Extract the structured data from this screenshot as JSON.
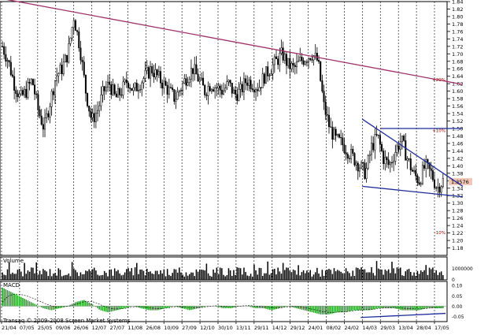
{
  "chart_data": [
    {
      "type": "candlestick",
      "panel": "price",
      "ylim": [
        1.16,
        1.84
      ],
      "y_ticks": [
        1.84,
        1.82,
        1.8,
        1.78,
        1.76,
        1.74,
        1.72,
        1.7,
        1.68,
        1.66,
        1.64,
        1.62,
        1.6,
        1.58,
        1.56,
        1.54,
        1.52,
        1.5,
        1.48,
        1.46,
        1.44,
        1.42,
        1.4,
        1.38,
        1.36,
        1.34,
        1.32,
        1.3,
        1.28,
        1.26,
        1.24,
        1.22,
        1.2,
        1.18
      ],
      "y_tick_labels": [
        "1.84",
        "1.82",
        "1.80",
        "1.78",
        "1.76",
        "1.74",
        "1.72",
        "1.70",
        "1.68",
        "1.66",
        "1.64",
        "1.62",
        "1.60",
        "1.58",
        "1.56",
        "1.54",
        "1.52",
        "1.50",
        "1.48",
        "1.46",
        "1.44",
        "1.42",
        "1.40",
        "1.38",
        "1.36",
        "1.34",
        "1.32",
        "1.30",
        "1.28",
        "1.26",
        "1.24",
        "1.22",
        "1.20",
        "1.18"
      ],
      "last_price": "1.3576",
      "approx_close_series": [
        1.72,
        1.68,
        1.62,
        1.58,
        1.6,
        1.63,
        1.55,
        1.5,
        1.57,
        1.64,
        1.66,
        1.7,
        1.8,
        1.72,
        1.6,
        1.52,
        1.55,
        1.6,
        1.62,
        1.58,
        1.6,
        1.63,
        1.6,
        1.62,
        1.64,
        1.66,
        1.64,
        1.62,
        1.6,
        1.58,
        1.61,
        1.64,
        1.66,
        1.63,
        1.6,
        1.62,
        1.61,
        1.6,
        1.62,
        1.59,
        1.6,
        1.63,
        1.62,
        1.61,
        1.64,
        1.66,
        1.68,
        1.7,
        1.67,
        1.66,
        1.68,
        1.69,
        1.7,
        1.68,
        1.56,
        1.5,
        1.47,
        1.46,
        1.44,
        1.42,
        1.4,
        1.38,
        1.45,
        1.48,
        1.42,
        1.4,
        1.44,
        1.47,
        1.42,
        1.38,
        1.36,
        1.4,
        1.38,
        1.34,
        1.36
      ],
      "annotations": [
        {
          "text": "+20%",
          "y": 1.631
        },
        {
          "text": "+10%",
          "y": 1.495
        },
        {
          "text": "-10%",
          "y": 1.221
        }
      ],
      "trendlines": [
        {
          "color": "#a0306a",
          "from": [
            "21/04",
            1.848
          ],
          "to": [
            "27/05",
            1.618
          ]
        },
        {
          "color": "#1c2b9a",
          "from": [
            "14/03",
            1.525
          ],
          "to": [
            "27/05",
            1.345
          ]
        },
        {
          "color": "#1c2b9a",
          "from": [
            "14/03",
            1.345
          ],
          "to": [
            "27/05",
            1.317
          ]
        },
        {
          "color": "#1c2b9a",
          "from": [
            "29/03",
            1.5
          ],
          "to": [
            "27/05",
            1.5
          ]
        }
      ]
    },
    {
      "type": "bar",
      "panel": "volume",
      "title": "Volume",
      "y_tick_labels": [
        "0",
        "1000000"
      ]
    },
    {
      "type": "bar",
      "panel": "macd",
      "title": "MACD",
      "y_tick_labels": [
        "0.10",
        "0.05",
        "0.00",
        "-0.05"
      ],
      "ylim": [
        -0.075,
        0.12
      ],
      "approx_histogram": [
        0.09,
        0.07,
        0.05,
        0.03,
        0.01,
        -0.01,
        -0.02,
        -0.01,
        0.0,
        0.02,
        0.03,
        0.01,
        -0.02,
        -0.03,
        -0.02,
        -0.01,
        0.0,
        -0.01,
        -0.02,
        -0.02,
        -0.01,
        0.0,
        -0.01,
        -0.02,
        -0.01,
        0.0,
        0.0,
        -0.01,
        -0.01,
        0.0,
        0.0,
        -0.01,
        -0.01,
        -0.02,
        -0.01,
        0.0,
        -0.01,
        -0.02,
        -0.03,
        -0.04,
        -0.04,
        -0.03,
        -0.03,
        -0.02,
        -0.02,
        -0.02,
        -0.01,
        -0.01,
        -0.01,
        -0.02,
        -0.02,
        -0.02,
        -0.01,
        -0.01,
        -0.01
      ]
    }
  ],
  "x_axis": {
    "tick_labels": [
      "21/04",
      "07/05",
      "25/05",
      "09/06",
      "26/06",
      "12/07",
      "27/07",
      "11/08",
      "26/08",
      "10/09",
      "27/09",
      "12/10",
      "30/10",
      "13/11",
      "29/11",
      "14/12",
      "29/12",
      "24/01",
      "08/02",
      "24/02",
      "14/03",
      "29/03",
      "13/04",
      "28/04",
      "17/05"
    ]
  },
  "copyright": "Transaq © 2009-2008 Screen Market Systems",
  "colors": {
    "candle": "#000000",
    "main_trend": "#a0306a",
    "channel": "#1c2b9a",
    "macd_bar": "#20a020",
    "grid": "#000000",
    "last_price_bg": "#f2c7b8"
  }
}
